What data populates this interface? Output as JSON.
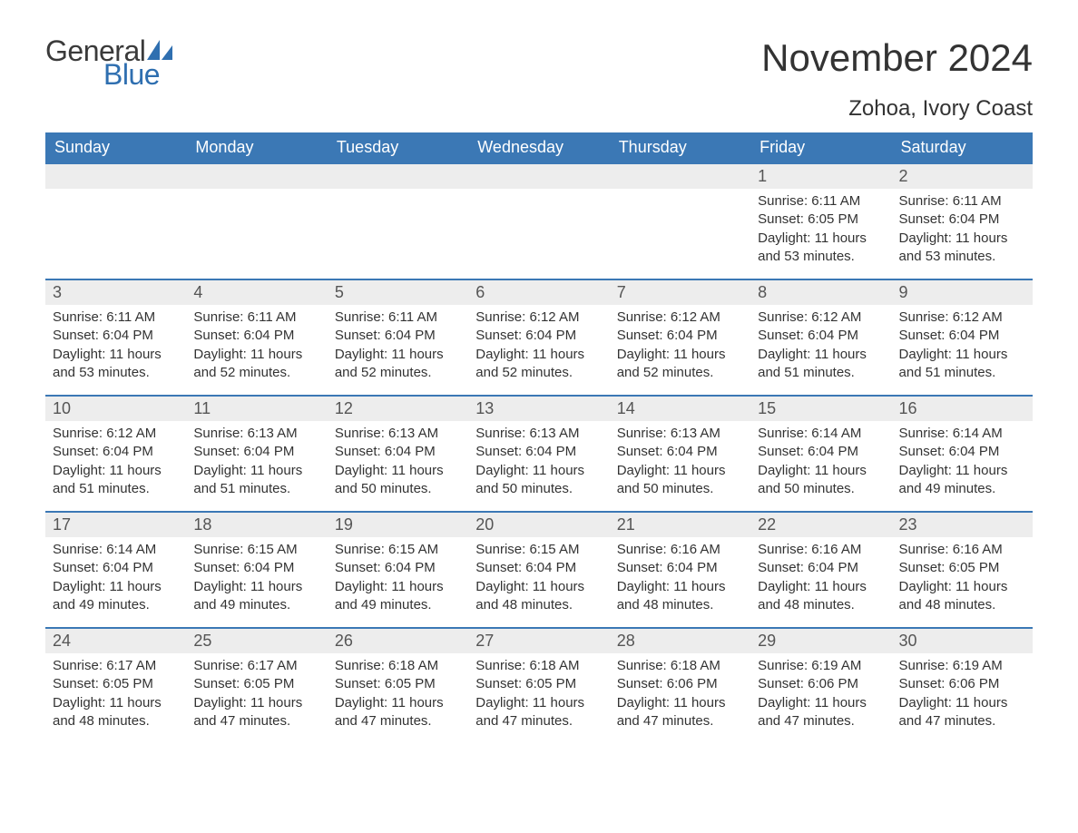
{
  "brand": {
    "general": "General",
    "blue": "Blue",
    "sail_color": "#2f6fb0"
  },
  "title": "November 2024",
  "subtitle": "Zohoa, Ivory Coast",
  "colors": {
    "header_bg": "#3b78b5",
    "header_text": "#ffffff",
    "daynum_bg": "#ededed",
    "daynum_border": "#3b78b5",
    "body_text": "#333333",
    "page_bg": "#ffffff"
  },
  "fonts": {
    "title_size": 42,
    "subtitle_size": 24,
    "th_size": 18,
    "daynum_size": 18,
    "body_size": 15
  },
  "weekdays": [
    "Sunday",
    "Monday",
    "Tuesday",
    "Wednesday",
    "Thursday",
    "Friday",
    "Saturday"
  ],
  "labels": {
    "sunrise": "Sunrise: ",
    "sunset": "Sunset: ",
    "daylight": "Daylight: "
  },
  "weeks": [
    [
      null,
      null,
      null,
      null,
      null,
      {
        "n": "1",
        "sunrise": "6:11 AM",
        "sunset": "6:05 PM",
        "daylight": "11 hours and 53 minutes."
      },
      {
        "n": "2",
        "sunrise": "6:11 AM",
        "sunset": "6:04 PM",
        "daylight": "11 hours and 53 minutes."
      }
    ],
    [
      {
        "n": "3",
        "sunrise": "6:11 AM",
        "sunset": "6:04 PM",
        "daylight": "11 hours and 53 minutes."
      },
      {
        "n": "4",
        "sunrise": "6:11 AM",
        "sunset": "6:04 PM",
        "daylight": "11 hours and 52 minutes."
      },
      {
        "n": "5",
        "sunrise": "6:11 AM",
        "sunset": "6:04 PM",
        "daylight": "11 hours and 52 minutes."
      },
      {
        "n": "6",
        "sunrise": "6:12 AM",
        "sunset": "6:04 PM",
        "daylight": "11 hours and 52 minutes."
      },
      {
        "n": "7",
        "sunrise": "6:12 AM",
        "sunset": "6:04 PM",
        "daylight": "11 hours and 52 minutes."
      },
      {
        "n": "8",
        "sunrise": "6:12 AM",
        "sunset": "6:04 PM",
        "daylight": "11 hours and 51 minutes."
      },
      {
        "n": "9",
        "sunrise": "6:12 AM",
        "sunset": "6:04 PM",
        "daylight": "11 hours and 51 minutes."
      }
    ],
    [
      {
        "n": "10",
        "sunrise": "6:12 AM",
        "sunset": "6:04 PM",
        "daylight": "11 hours and 51 minutes."
      },
      {
        "n": "11",
        "sunrise": "6:13 AM",
        "sunset": "6:04 PM",
        "daylight": "11 hours and 51 minutes."
      },
      {
        "n": "12",
        "sunrise": "6:13 AM",
        "sunset": "6:04 PM",
        "daylight": "11 hours and 50 minutes."
      },
      {
        "n": "13",
        "sunrise": "6:13 AM",
        "sunset": "6:04 PM",
        "daylight": "11 hours and 50 minutes."
      },
      {
        "n": "14",
        "sunrise": "6:13 AM",
        "sunset": "6:04 PM",
        "daylight": "11 hours and 50 minutes."
      },
      {
        "n": "15",
        "sunrise": "6:14 AM",
        "sunset": "6:04 PM",
        "daylight": "11 hours and 50 minutes."
      },
      {
        "n": "16",
        "sunrise": "6:14 AM",
        "sunset": "6:04 PM",
        "daylight": "11 hours and 49 minutes."
      }
    ],
    [
      {
        "n": "17",
        "sunrise": "6:14 AM",
        "sunset": "6:04 PM",
        "daylight": "11 hours and 49 minutes."
      },
      {
        "n": "18",
        "sunrise": "6:15 AM",
        "sunset": "6:04 PM",
        "daylight": "11 hours and 49 minutes."
      },
      {
        "n": "19",
        "sunrise": "6:15 AM",
        "sunset": "6:04 PM",
        "daylight": "11 hours and 49 minutes."
      },
      {
        "n": "20",
        "sunrise": "6:15 AM",
        "sunset": "6:04 PM",
        "daylight": "11 hours and 48 minutes."
      },
      {
        "n": "21",
        "sunrise": "6:16 AM",
        "sunset": "6:04 PM",
        "daylight": "11 hours and 48 minutes."
      },
      {
        "n": "22",
        "sunrise": "6:16 AM",
        "sunset": "6:04 PM",
        "daylight": "11 hours and 48 minutes."
      },
      {
        "n": "23",
        "sunrise": "6:16 AM",
        "sunset": "6:05 PM",
        "daylight": "11 hours and 48 minutes."
      }
    ],
    [
      {
        "n": "24",
        "sunrise": "6:17 AM",
        "sunset": "6:05 PM",
        "daylight": "11 hours and 48 minutes."
      },
      {
        "n": "25",
        "sunrise": "6:17 AM",
        "sunset": "6:05 PM",
        "daylight": "11 hours and 47 minutes."
      },
      {
        "n": "26",
        "sunrise": "6:18 AM",
        "sunset": "6:05 PM",
        "daylight": "11 hours and 47 minutes."
      },
      {
        "n": "27",
        "sunrise": "6:18 AM",
        "sunset": "6:05 PM",
        "daylight": "11 hours and 47 minutes."
      },
      {
        "n": "28",
        "sunrise": "6:18 AM",
        "sunset": "6:06 PM",
        "daylight": "11 hours and 47 minutes."
      },
      {
        "n": "29",
        "sunrise": "6:19 AM",
        "sunset": "6:06 PM",
        "daylight": "11 hours and 47 minutes."
      },
      {
        "n": "30",
        "sunrise": "6:19 AM",
        "sunset": "6:06 PM",
        "daylight": "11 hours and 47 minutes."
      }
    ]
  ]
}
